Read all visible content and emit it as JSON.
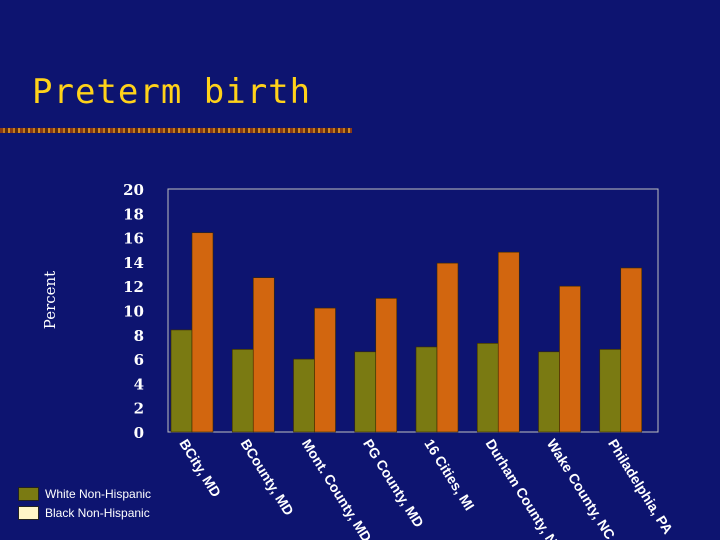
{
  "title": "Preterm birth",
  "chart_data": {
    "type": "bar",
    "title": "Preterm birth",
    "ylabel": "Percent",
    "xlabel": "",
    "ylim": [
      0,
      20
    ],
    "yticks": [
      0,
      2,
      4,
      6,
      8,
      10,
      12,
      14,
      16,
      18,
      20
    ],
    "grid": false,
    "categories": [
      "BCity, MD",
      "BCounty, MD",
      "Mont. County, MD",
      "PG County, MD",
      "16 Cities, MI",
      "Durham County, NC",
      "Wake County, NC",
      "Philadelphia, PA"
    ],
    "series": [
      {
        "name": "White Non-Hispanic",
        "color": "#7a7a12",
        "values": [
          8.4,
          6.8,
          6.0,
          6.6,
          7.0,
          7.3,
          6.6,
          6.8
        ]
      },
      {
        "name": "Black Non-Hispanic",
        "color": "#d2660f",
        "values": [
          16.4,
          12.7,
          10.2,
          11.0,
          13.9,
          14.8,
          12.0,
          13.5
        ]
      }
    ],
    "legend_position": "bottom-left",
    "legend_swatch_colors": [
      "#7a7a12",
      "#fff5c8"
    ]
  }
}
